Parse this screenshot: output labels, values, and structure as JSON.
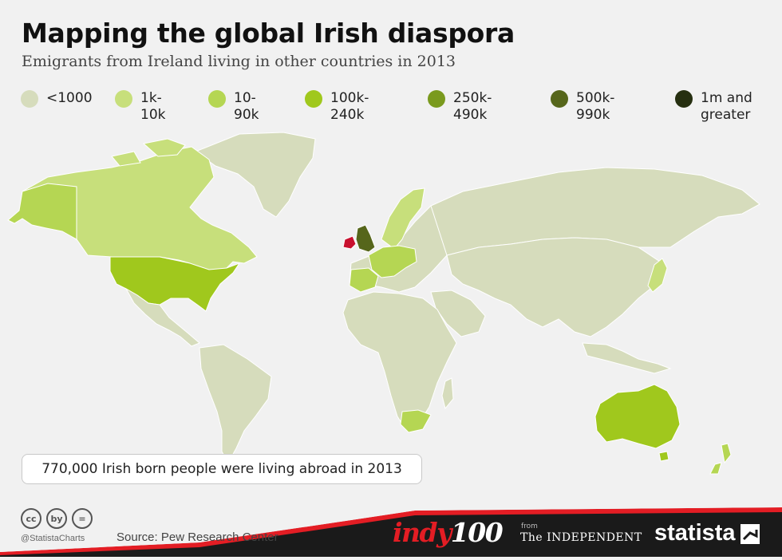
{
  "title": "Mapping the global Irish diaspora",
  "subtitle": "Emigrants from Ireland living in other countries in 2013",
  "legend": [
    {
      "label": "<1000",
      "color": "#d6dcbc"
    },
    {
      "label": "1k-10k",
      "color": "#c7df7b"
    },
    {
      "label": "10-90k",
      "color": "#b5d653"
    },
    {
      "label": "100k-240k",
      "color": "#a0c81d"
    },
    {
      "label": "250k-490k",
      "color": "#7a9a1e"
    },
    {
      "label": "500k-990k",
      "color": "#56661b"
    },
    {
      "label": "1m and greater",
      "color": "#262f10"
    }
  ],
  "map": {
    "base_color": "#d6dcbc",
    "ireland_color": "#c8102e",
    "regions": [
      {
        "name": "United States",
        "color": "#a0c81d"
      },
      {
        "name": "Canada",
        "color": "#c7df7b"
      },
      {
        "name": "Greenland",
        "color": "#d6dcbc"
      },
      {
        "name": "United Kingdom",
        "color": "#56661b"
      },
      {
        "name": "Ireland",
        "color": "#c8102e"
      },
      {
        "name": "Spain",
        "color": "#b5d653"
      },
      {
        "name": "Australia",
        "color": "#a0c81d"
      },
      {
        "name": "South Africa",
        "color": "#b5d653"
      },
      {
        "name": "New Zealand",
        "color": "#b5d653"
      }
    ]
  },
  "callout": "770,000 Irish born people were living abroad in 2013",
  "footer": {
    "cc_icons": [
      "cc",
      "by",
      "="
    ],
    "handle": "@StatistaCharts",
    "source": "Source: Pew Research Center",
    "indy_word": "indy",
    "indy_num": "100",
    "from": "from",
    "independent": "The INDEPENDENT",
    "statista": "statista"
  },
  "colors": {
    "accent_red": "#e31d24",
    "footer_bg": "#1a1a1a"
  }
}
